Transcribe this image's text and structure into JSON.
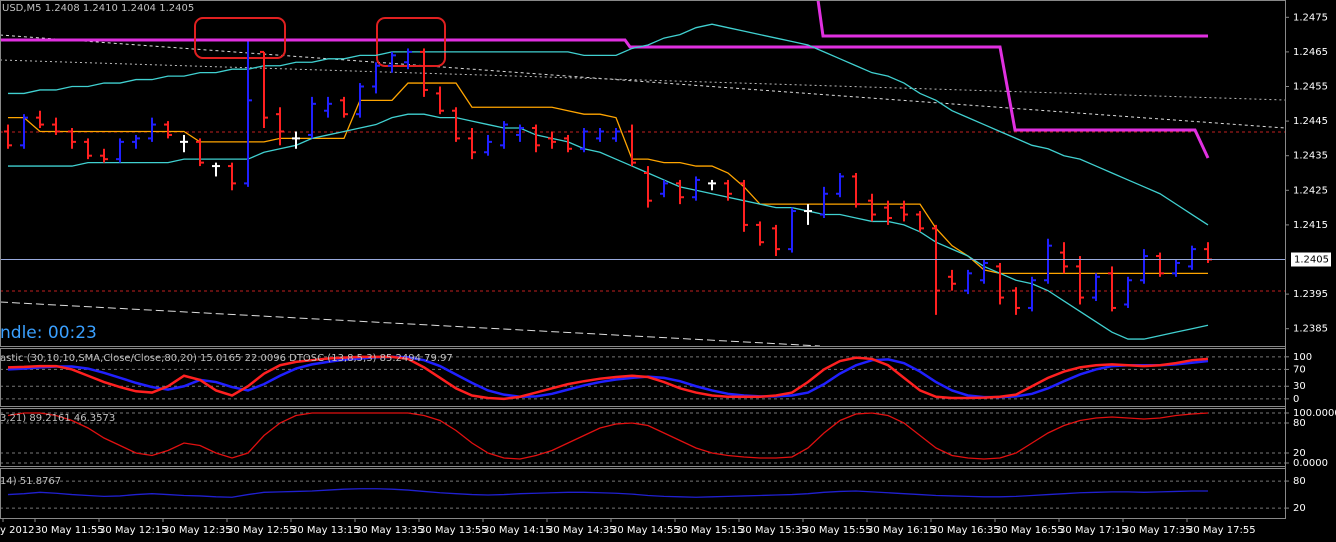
{
  "chart_data": [
    {
      "type": "ohlc",
      "title": "USD,M5  1.2408 1.2410 1.2404 1.2405",
      "countdown": "ndle:  00:23",
      "categories": [
        "y 2012",
        null,
        "30 May 11:55",
        null,
        null,
        null,
        "30 May 12:15",
        null,
        null,
        null,
        "30 May 12:35",
        null,
        null,
        null,
        "30 May 12:55",
        null,
        null,
        null,
        "30 May 13:15",
        null,
        null,
        null,
        "30 May 13:35",
        null,
        null,
        null,
        "30 May 13:55",
        null,
        null,
        null,
        "30 May 14:15",
        null,
        null,
        null,
        "30 May 14:35",
        null,
        null,
        null,
        "30 May 14:55",
        null,
        null,
        null,
        "30 May 15:15",
        null,
        null,
        null,
        "30 May 15:35",
        null,
        null,
        null,
        "30 May 15:55",
        null,
        null,
        null,
        "30 May 16:15",
        null,
        null,
        null,
        "30 May 16:35",
        null,
        null,
        null,
        "30 May 16:55",
        null,
        null,
        null,
        "30 May 17:15",
        null,
        null,
        null,
        "30 May 17:35",
        null,
        null,
        null,
        "30 May 17:55",
        null
      ],
      "open": [
        1.2442,
        1.2438,
        1.2446,
        1.2444,
        1.2442,
        1.2439,
        1.2435,
        1.2434,
        1.2439,
        1.244,
        1.2444,
        1.2439,
        1.2439,
        1.2432,
        1.2432,
        1.2427,
        1.2465,
        1.2447,
        1.244,
        1.2441,
        1.2448,
        1.2451,
        1.2447,
        1.2455,
        1.2461,
        1.2462,
        1.2465,
        1.2453,
        1.2448,
        1.244,
        1.2436,
        1.2438,
        1.2441,
        1.2443,
        1.244,
        1.244,
        1.2437,
        1.244,
        1.244,
        1.2442,
        1.243,
        1.2424,
        1.2427,
        1.2423,
        1.2427,
        1.2427,
        1.2427,
        1.2415,
        1.2414,
        1.2408,
        1.2419,
        1.2418,
        1.2424,
        1.2429,
        1.2422,
        1.242,
        1.242,
        1.2418,
        1.2414,
        1.24,
        1.2396,
        1.2399,
        1.2403,
        1.2396,
        1.2391,
        1.2399,
        1.2407,
        1.2403,
        1.2394,
        1.2401,
        1.2392,
        1.2399,
        1.2406,
        1.2401,
        1.2403,
        1.2408
      ],
      "high": [
        1.2444,
        1.2447,
        1.2448,
        1.2446,
        1.2443,
        1.244,
        1.2437,
        1.244,
        1.2441,
        1.2446,
        1.2445,
        1.2441,
        1.244,
        1.2433,
        1.2433,
        1.2468,
        1.2465,
        1.2449,
        1.2442,
        1.2452,
        1.2452,
        1.2452,
        1.2456,
        1.2462,
        1.2465,
        1.2466,
        1.2466,
        1.2455,
        1.2449,
        1.2443,
        1.2441,
        1.2445,
        1.2444,
        1.2444,
        1.2442,
        1.2441,
        1.2443,
        1.2443,
        1.2443,
        1.2444,
        1.2432,
        1.2428,
        1.2428,
        1.2429,
        1.2428,
        1.2428,
        1.2428,
        1.2416,
        1.2415,
        1.242,
        1.2421,
        1.2426,
        1.243,
        1.243,
        1.2424,
        1.2422,
        1.2422,
        1.2419,
        1.2415,
        1.2402,
        1.2402,
        1.2405,
        1.2404,
        1.2397,
        1.24,
        1.2411,
        1.241,
        1.2406,
        1.2401,
        1.2403,
        1.24,
        1.2408,
        1.2407,
        1.2405,
        1.2409,
        1.241
      ],
      "low": [
        1.2437,
        1.2437,
        1.2443,
        1.2441,
        1.2437,
        1.2434,
        1.2433,
        1.2433,
        1.2437,
        1.2439,
        1.244,
        1.2436,
        1.2432,
        1.2429,
        1.2425,
        1.2426,
        1.2443,
        1.2438,
        1.2437,
        1.244,
        1.2446,
        1.2446,
        1.2446,
        1.2453,
        1.2459,
        1.246,
        1.2452,
        1.2447,
        1.2439,
        1.2434,
        1.2435,
        1.2437,
        1.2439,
        1.2436,
        1.2437,
        1.2436,
        1.2436,
        1.2439,
        1.2439,
        1.2432,
        1.242,
        1.2423,
        1.2421,
        1.2422,
        1.2425,
        1.2422,
        1.2413,
        1.2409,
        1.2406,
        1.2407,
        1.2415,
        1.2417,
        1.2423,
        1.242,
        1.2416,
        1.2415,
        1.2416,
        1.2413,
        1.2389,
        1.2396,
        1.2395,
        1.2398,
        1.2392,
        1.2389,
        1.239,
        1.2398,
        1.2401,
        1.2392,
        1.2393,
        1.239,
        1.2391,
        1.2398,
        1.24,
        1.24,
        1.2402,
        1.2404
      ],
      "close": [
        1.2438,
        1.2446,
        1.2444,
        1.2442,
        1.2439,
        1.2435,
        1.2434,
        1.2439,
        1.244,
        1.2444,
        1.2441,
        1.2439,
        1.2433,
        1.2432,
        1.2427,
        1.2451,
        1.2446,
        1.2442,
        1.244,
        1.245,
        1.245,
        1.2447,
        1.2455,
        1.2461,
        1.2464,
        1.2465,
        1.2454,
        1.2448,
        1.244,
        1.2436,
        1.2439,
        1.2444,
        1.2443,
        1.2438,
        1.2439,
        1.2437,
        1.2442,
        1.2442,
        1.2442,
        1.2433,
        1.2422,
        1.2427,
        1.2423,
        1.2428,
        1.2427,
        1.2424,
        1.2415,
        1.241,
        1.2408,
        1.2419,
        1.2419,
        1.2424,
        1.2429,
        1.2421,
        1.2418,
        1.2417,
        1.2418,
        1.2414,
        1.2396,
        1.2398,
        1.2401,
        1.2404,
        1.2394,
        1.2391,
        1.2399,
        1.2409,
        1.2403,
        1.2394,
        1.24,
        1.2391,
        1.2399,
        1.2406,
        1.2401,
        1.2404,
        1.2408,
        1.2405
      ],
      "up_color": "#2020ff",
      "down_color": "#ff2020",
      "doji_color": "#ffffff",
      "series": [
        {
          "color": "#ffa500",
          "values": [
            1.2446,
            1.2446,
            1.2442,
            1.2442,
            1.2442,
            1.2442,
            1.2442,
            1.2442,
            1.2442,
            1.2442,
            1.2442,
            1.2442,
            1.2439,
            1.2439,
            1.2439,
            1.2439,
            1.2439,
            1.244,
            1.244,
            1.244,
            1.244,
            1.244,
            1.2451,
            1.2451,
            1.2451,
            1.2456,
            1.2456,
            1.2456,
            1.2456,
            1.2449,
            1.2449,
            1.2449,
            1.2449,
            1.2449,
            1.2449,
            1.2448,
            1.2447,
            1.2447,
            1.2446,
            1.2434,
            1.2434,
            1.2433,
            1.2433,
            1.2432,
            1.2432,
            1.243,
            1.2426,
            1.2421,
            1.2421,
            1.2421,
            1.2421,
            1.2421,
            1.2421,
            1.2421,
            1.2421,
            1.2421,
            1.2421,
            1.2421,
            1.2414,
            1.2409,
            1.2406,
            1.2402,
            1.2401,
            1.2401,
            1.2401,
            1.2401,
            1.2401,
            1.2401,
            1.2401,
            1.2401,
            1.2401,
            1.2401,
            1.2401,
            1.2401,
            1.2401,
            1.2401
          ]
        },
        {
          "color": "#40d0d0",
          "values": [
            1.2453,
            1.2453,
            1.2454,
            1.2454,
            1.2455,
            1.2455,
            1.2456,
            1.2456,
            1.2457,
            1.2457,
            1.2458,
            1.2458,
            1.2459,
            1.2459,
            1.246,
            1.246,
            1.2461,
            1.2461,
            1.2462,
            1.2462,
            1.2463,
            1.2463,
            1.2464,
            1.2464,
            1.2465,
            1.2465,
            1.2465,
            1.2465,
            1.2465,
            1.2465,
            1.2465,
            1.2465,
            1.2465,
            1.2465,
            1.2465,
            1.2465,
            1.2464,
            1.2464,
            1.2464,
            1.2466,
            1.2467,
            1.2469,
            1.247,
            1.2472,
            1.2473,
            1.2472,
            1.2471,
            1.247,
            1.2469,
            1.2468,
            1.2467,
            1.2465,
            1.2463,
            1.2461,
            1.2459,
            1.2458,
            1.2456,
            1.2453,
            1.2451,
            1.2448,
            1.2446,
            1.2444,
            1.2442,
            1.244,
            1.2438,
            1.2437,
            1.2435,
            1.2434,
            1.2432,
            1.243,
            1.2428,
            1.2426,
            1.2424,
            1.2421,
            1.2418,
            1.2415
          ]
        },
        {
          "color": "#40d0d0",
          "values": [
            1.2432,
            1.2432,
            1.2432,
            1.2432,
            1.2432,
            1.2433,
            1.2433,
            1.2433,
            1.2433,
            1.2433,
            1.2433,
            1.2434,
            1.2434,
            1.2434,
            1.2434,
            1.2434,
            1.2436,
            1.2437,
            1.2438,
            1.244,
            1.2441,
            1.2442,
            1.2443,
            1.2444,
            1.2446,
            1.2447,
            1.2447,
            1.2446,
            1.2446,
            1.2445,
            1.2444,
            1.2443,
            1.2443,
            1.2441,
            1.244,
            1.2439,
            1.2437,
            1.2436,
            1.2434,
            1.2432,
            1.243,
            1.2428,
            1.2426,
            1.2425,
            1.2424,
            1.2423,
            1.2422,
            1.2421,
            1.242,
            1.242,
            1.2419,
            1.2418,
            1.2418,
            1.2417,
            1.2416,
            1.2416,
            1.2415,
            1.2413,
            1.241,
            1.2408,
            1.2406,
            1.2403,
            1.2401,
            1.2399,
            1.2398,
            1.2396,
            1.2393,
            1.239,
            1.2387,
            1.2384,
            1.2382,
            1.2382,
            1.2383,
            1.2384,
            1.2385,
            1.2386
          ]
        }
      ],
      "ylim": [
        1.238,
        1.248
      ],
      "yticks": [
        1.2475,
        1.2465,
        1.2455,
        1.2445,
        1.2435,
        1.2425,
        1.2415,
        1.2395,
        1.2385
      ],
      "price_line": 1.2405
    },
    {
      "type": "line",
      "title": "astic (30,10,10,SMA,Close/Close,80,20) 15.0165 22.0096  DTOSC (13,8,5,3) 85.2494 79.97",
      "series": [
        {
          "color": "#2020ff",
          "values": [
            70,
            72,
            75,
            77,
            77,
            72,
            62,
            50,
            38,
            28,
            22,
            30,
            45,
            40,
            28,
            20,
            35,
            55,
            72,
            82,
            88,
            93,
            96,
            99,
            100,
            99,
            92,
            78,
            58,
            38,
            20,
            10,
            5,
            6,
            12,
            22,
            32,
            40,
            46,
            50,
            53,
            50,
            42,
            30,
            20,
            12,
            8,
            6,
            6,
            8,
            15,
            35,
            60,
            80,
            92,
            94,
            85,
            65,
            40,
            20,
            8,
            4,
            4,
            6,
            12,
            25,
            42,
            58,
            70,
            78,
            80,
            80,
            80,
            82,
            86,
            90
          ]
        },
        {
          "color": "#ff2020",
          "values": [
            75,
            76,
            78,
            78,
            70,
            55,
            40,
            28,
            18,
            15,
            30,
            55,
            45,
            20,
            8,
            30,
            60,
            80,
            88,
            92,
            96,
            98,
            100,
            100,
            100,
            95,
            75,
            50,
            25,
            8,
            2,
            0,
            5,
            15,
            25,
            35,
            42,
            48,
            52,
            55,
            52,
            40,
            25,
            15,
            8,
            5,
            5,
            5,
            8,
            15,
            40,
            70,
            90,
            98,
            95,
            80,
            50,
            20,
            5,
            2,
            2,
            3,
            5,
            10,
            30,
            50,
            65,
            75,
            80,
            82,
            80,
            78,
            80,
            85,
            92,
            95
          ]
        }
      ],
      "ylim": [
        -17,
        121
      ],
      "yticks": [
        100,
        70,
        30,
        0
      ],
      "grid": true
    },
    {
      "type": "line",
      "title": "3,21) 89.2161 46.3573",
      "series": [
        {
          "color": "#e01010",
          "values": [
            95,
            100,
            100,
            95,
            85,
            70,
            50,
            35,
            20,
            15,
            25,
            40,
            35,
            20,
            10,
            20,
            55,
            80,
            95,
            100,
            100,
            100,
            100,
            100,
            100,
            100,
            95,
            85,
            65,
            40,
            20,
            10,
            8,
            15,
            25,
            40,
            55,
            70,
            78,
            80,
            75,
            60,
            45,
            30,
            20,
            15,
            12,
            10,
            10,
            12,
            30,
            60,
            85,
            98,
            100,
            95,
            80,
            55,
            30,
            15,
            10,
            8,
            10,
            20,
            40,
            60,
            75,
            85,
            90,
            92,
            90,
            88,
            90,
            95,
            98,
            100
          ]
        }
      ],
      "ylim": [
        -6,
        110
      ],
      "yticks": [
        {
          "value": 100,
          "label": "100.0000"
        },
        80,
        20,
        {
          "value": 0,
          "label": "0.0000"
        }
      ],
      "grid": true
    },
    {
      "type": "line",
      "title": "14) 51.8767",
      "series": [
        {
          "color": "#2020d0",
          "values": [
            50,
            52,
            55,
            53,
            50,
            48,
            46,
            47,
            50,
            52,
            50,
            48,
            47,
            45,
            44,
            50,
            55,
            56,
            57,
            58,
            60,
            62,
            63,
            63,
            62,
            60,
            57,
            54,
            52,
            50,
            49,
            50,
            52,
            53,
            54,
            55,
            55,
            54,
            53,
            51,
            48,
            46,
            45,
            44,
            45,
            46,
            47,
            48,
            49,
            50,
            52,
            55,
            57,
            58,
            56,
            54,
            52,
            50,
            48,
            47,
            46,
            45,
            45,
            46,
            48,
            50,
            52,
            54,
            55,
            56,
            56,
            55,
            56,
            57,
            58,
            58
          ]
        }
      ],
      "ylim": [
        -2,
        109
      ],
      "yticks": [
        80,
        20
      ],
      "grid": true
    }
  ]
}
